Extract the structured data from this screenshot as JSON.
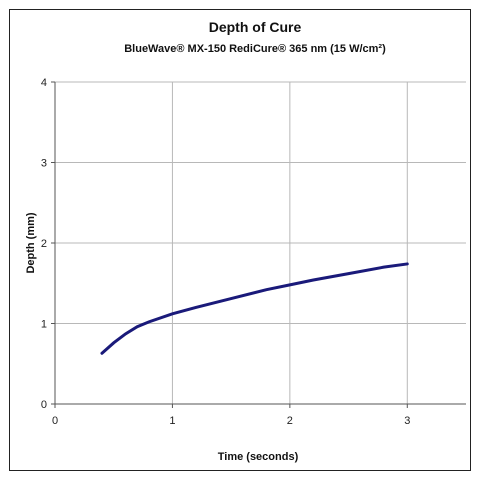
{
  "chart_data": {
    "type": "line",
    "title": "Depth of Cure",
    "subtitle": "BlueWave® MX-150 RediCure® 365 nm (15 W/cm²)",
    "xlabel": "Time (seconds)",
    "ylabel": "Depth (mm)",
    "xlim": [
      0,
      3.5
    ],
    "ylim": [
      0,
      4
    ],
    "x_ticks": [
      0,
      1,
      2,
      3
    ],
    "y_ticks": [
      0,
      1,
      2,
      3,
      4
    ],
    "grid": true,
    "series": [
      {
        "color": "#1a1a7a",
        "x": [
          0.4,
          0.5,
          0.6,
          0.7,
          0.8,
          1.0,
          1.2,
          1.5,
          1.8,
          2.0,
          2.2,
          2.5,
          2.8,
          3.0
        ],
        "y": [
          0.63,
          0.76,
          0.87,
          0.96,
          1.02,
          1.12,
          1.2,
          1.31,
          1.42,
          1.48,
          1.54,
          1.62,
          1.7,
          1.74
        ]
      }
    ]
  }
}
